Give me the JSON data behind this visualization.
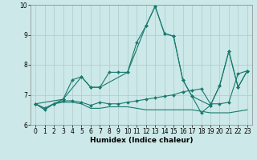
{
  "title": "",
  "xlabel": "Humidex (Indice chaleur)",
  "xlim": [
    -0.5,
    23.5
  ],
  "ylim": [
    6,
    10
  ],
  "yticks": [
    6,
    7,
    8,
    9,
    10
  ],
  "xticks": [
    0,
    1,
    2,
    3,
    4,
    5,
    6,
    7,
    8,
    9,
    10,
    11,
    12,
    13,
    14,
    15,
    16,
    17,
    18,
    19,
    20,
    21,
    22,
    23
  ],
  "bg_color": "#cce8e8",
  "grid_color": "#aacccc",
  "line_color": "#1a7a6e",
  "lines": [
    {
      "x": [
        0,
        1,
        2,
        3,
        4,
        5,
        6,
        7,
        8,
        9,
        10,
        11,
        12,
        13,
        14,
        15,
        16,
        17,
        18,
        19,
        20,
        21,
        22,
        23
      ],
      "y": [
        6.7,
        6.5,
        6.7,
        6.85,
        7.5,
        7.6,
        7.25,
        7.25,
        7.75,
        7.75,
        7.75,
        8.75,
        9.3,
        9.95,
        9.05,
        8.95,
        7.5,
        6.95,
        6.4,
        6.65,
        7.3,
        8.45,
        7.25,
        7.8
      ],
      "markers": true
    },
    {
      "x": [
        0,
        1,
        2,
        3,
        4,
        5,
        6,
        7,
        8,
        9,
        10,
        11,
        12,
        13,
        14,
        15,
        16,
        17,
        18,
        19,
        20,
        21,
        22,
        23
      ],
      "y": [
        6.7,
        6.55,
        6.7,
        6.8,
        6.8,
        6.75,
        6.65,
        6.75,
        6.7,
        6.7,
        6.75,
        6.8,
        6.85,
        6.9,
        6.95,
        7.0,
        7.1,
        7.15,
        7.2,
        6.7,
        6.7,
        6.75,
        7.7,
        7.8
      ],
      "markers": true
    },
    {
      "x": [
        0,
        1,
        2,
        3,
        4,
        5,
        6,
        7,
        8,
        9,
        10,
        11,
        12,
        13,
        14,
        15,
        16,
        17,
        18,
        19,
        20,
        21,
        22,
        23
      ],
      "y": [
        6.7,
        6.55,
        6.7,
        6.75,
        6.75,
        6.7,
        6.55,
        6.55,
        6.6,
        6.6,
        6.6,
        6.55,
        6.5,
        6.5,
        6.5,
        6.5,
        6.5,
        6.5,
        6.45,
        6.4,
        6.4,
        6.4,
        6.45,
        6.5
      ],
      "markers": false
    },
    {
      "x": [
        0,
        3,
        5,
        6,
        7,
        10,
        12,
        13,
        14,
        15,
        16,
        17,
        19,
        20,
        21,
        22,
        23
      ],
      "y": [
        6.7,
        6.85,
        7.6,
        7.25,
        7.25,
        7.75,
        9.3,
        9.95,
        9.05,
        8.95,
        7.5,
        6.95,
        6.65,
        7.3,
        8.45,
        7.25,
        7.8
      ],
      "markers": true
    }
  ]
}
